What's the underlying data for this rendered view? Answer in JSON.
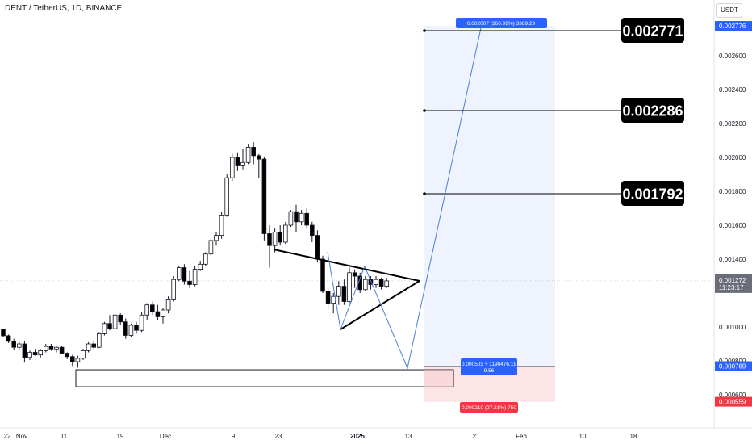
{
  "header": {
    "symbol": "DENT / TetherUS, 1D, BINANCE",
    "currency": "USDT"
  },
  "y_axis_ticks": [
    "0.002600",
    "0.002400",
    "0.002200",
    "0.002000",
    "0.001800",
    "0.001600",
    "0.001400",
    "0.001000",
    "0.000800",
    "0.000600"
  ],
  "x_axis_ticks": [
    "22",
    "Nov",
    "11",
    "19",
    "Dec",
    "9",
    "23",
    "2025",
    "13",
    "21",
    "Feb",
    "10",
    "18"
  ],
  "price_badges": {
    "top": "0.002776",
    "current": "0.001272",
    "countdown": "11:23:17",
    "entry": "0.000769",
    "stop": "0.000559"
  },
  "position_labels": {
    "target": "0.002007 (260.99%) 3389.29",
    "entry_line1": "0.000503 ÷ 1190476.19",
    "entry_line2": "9.56",
    "stop": "0.000210 (27.31%) 750"
  },
  "targets": [
    "0.002771",
    "0.002286",
    "0.001792"
  ],
  "colors": {
    "up": "#ffffff",
    "down": "#000000",
    "target_zone": "#eef3fd",
    "stop_zone": "#fde4e6",
    "projection": "#4a7fd6",
    "axis_blue": "#2962ff",
    "axis_red": "#f23645"
  },
  "chart_data": {
    "type": "candlestick",
    "y_scale_approx": "linear",
    "candles": [
      [
        0.000986,
        0.00099,
        0.00094,
        0.000948
      ],
      [
        0.000948,
        0.000955,
        0.000905,
        0.000915
      ],
      [
        0.000915,
        0.00093,
        0.000865,
        0.00088
      ],
      [
        0.00088,
        0.000915,
        0.000865,
        0.0009
      ],
      [
        0.0009,
        0.000915,
        0.00079,
        0.00082
      ],
      [
        0.00082,
        0.00086,
        0.000805,
        0.00085
      ],
      [
        0.00085,
        0.00087,
        0.00083,
        0.000835
      ],
      [
        0.000835,
        0.00087,
        0.00082,
        0.00086
      ],
      [
        0.00086,
        0.0009,
        0.00085,
        0.000885
      ],
      [
        0.000885,
        0.0009,
        0.00086,
        0.00087
      ],
      [
        0.00087,
        0.000885,
        0.00085,
        0.00088
      ],
      [
        0.00088,
        0.00089,
        0.00084,
        0.000845
      ],
      [
        0.000845,
        0.00085,
        0.00081,
        0.000825
      ],
      [
        0.000825,
        0.000835,
        0.00077,
        0.000795
      ],
      [
        0.000795,
        0.00083,
        0.00076,
        0.000815
      ],
      [
        0.000815,
        0.00087,
        0.000805,
        0.00086
      ],
      [
        0.00086,
        0.00091,
        0.00085,
        0.0009
      ],
      [
        0.0009,
        0.00092,
        0.00087,
        0.00088
      ],
      [
        0.00088,
        0.00097,
        0.000875,
        0.00096
      ],
      [
        0.00096,
        0.00103,
        0.00095,
        0.00102
      ],
      [
        0.00102,
        0.00107,
        0.00098,
        0.00099
      ],
      [
        0.00099,
        0.00108,
        0.000985,
        0.00107
      ],
      [
        0.00107,
        0.00108,
        0.00101,
        0.00103
      ],
      [
        0.00103,
        0.00105,
        0.00093,
        0.00095
      ],
      [
        0.00095,
        0.00102,
        0.00094,
        0.00101
      ],
      [
        0.00101,
        0.00103,
        0.00096,
        0.00098
      ],
      [
        0.00098,
        0.00109,
        0.00097,
        0.00107
      ],
      [
        0.00107,
        0.00114,
        0.00104,
        0.00113
      ],
      [
        0.00113,
        0.00115,
        0.00107,
        0.00109
      ],
      [
        0.00109,
        0.00113,
        0.00104,
        0.00106
      ],
      [
        0.00106,
        0.00111,
        0.00102,
        0.0011
      ],
      [
        0.0011,
        0.00118,
        0.00108,
        0.00116
      ],
      [
        0.00116,
        0.0013,
        0.00115,
        0.00128
      ],
      [
        0.00128,
        0.00136,
        0.00127,
        0.00135
      ],
      [
        0.00135,
        0.00137,
        0.00125,
        0.00127
      ],
      [
        0.00127,
        0.00133,
        0.00123,
        0.00125
      ],
      [
        0.00125,
        0.00136,
        0.00124,
        0.00134
      ],
      [
        0.00134,
        0.00139,
        0.00133,
        0.00137
      ],
      [
        0.00137,
        0.00144,
        0.00136,
        0.00143
      ],
      [
        0.00143,
        0.00152,
        0.00142,
        0.00151
      ],
      [
        0.00151,
        0.00156,
        0.00148,
        0.00154
      ],
      [
        0.00154,
        0.00168,
        0.00152,
        0.00166
      ],
      [
        0.00166,
        0.0019,
        0.00165,
        0.00188
      ],
      [
        0.00188,
        0.00202,
        0.00186,
        0.002
      ],
      [
        0.002,
        0.00203,
        0.00192,
        0.00195
      ],
      [
        0.00195,
        0.00205,
        0.00193,
        0.00197
      ],
      [
        0.00197,
        0.00208,
        0.00196,
        0.00206
      ],
      [
        0.00206,
        0.00209,
        0.00196,
        0.00201
      ],
      [
        0.00201,
        0.00202,
        0.00188,
        0.00199
      ],
      [
        0.00199,
        0.002,
        0.00151,
        0.00155
      ],
      [
        0.00155,
        0.0016,
        0.00135,
        0.00148
      ],
      [
        0.00148,
        0.00158,
        0.00144,
        0.00156
      ],
      [
        0.00156,
        0.0016,
        0.00148,
        0.0015
      ],
      [
        0.0015,
        0.00162,
        0.00149,
        0.0016
      ],
      [
        0.0016,
        0.00169,
        0.00159,
        0.00168
      ],
      [
        0.00168,
        0.00172,
        0.00156,
        0.00162
      ],
      [
        0.00162,
        0.00169,
        0.0016,
        0.00167
      ],
      [
        0.00167,
        0.0017,
        0.00158,
        0.0016
      ],
      [
        0.0016,
        0.00162,
        0.0015,
        0.00154
      ],
      [
        0.00154,
        0.00157,
        0.00138,
        0.0014
      ],
      [
        0.0014,
        0.00142,
        0.0012,
        0.00121
      ],
      [
        0.00121,
        0.00123,
        0.0011,
        0.00114
      ],
      [
        0.00114,
        0.0012,
        0.00108,
        0.00118
      ],
      [
        0.00118,
        0.00127,
        0.00113,
        0.00124
      ],
      [
        0.00124,
        0.00128,
        0.00113,
        0.00115
      ],
      [
        0.00115,
        0.00135,
        0.00114,
        0.00132
      ],
      [
        0.00132,
        0.00134,
        0.00123,
        0.0013
      ],
      [
        0.0013,
        0.00132,
        0.0012,
        0.00122
      ],
      [
        0.00122,
        0.0013,
        0.00121,
        0.00128
      ],
      [
        0.00128,
        0.0013,
        0.00122,
        0.00125
      ],
      [
        0.00125,
        0.0013,
        0.00123,
        0.00128
      ],
      [
        0.00128,
        0.00129,
        0.00122,
        0.00124
      ],
      [
        0.00124,
        0.00129,
        0.00123,
        0.001272
      ]
    ],
    "support_zone": [
      0.0007,
      0.000795
    ],
    "entry": 0.000769,
    "stop": 0.000559,
    "target": 0.002776,
    "target_levels": [
      0.002771,
      0.002286,
      0.001792
    ],
    "current_price": 0.001272
  }
}
